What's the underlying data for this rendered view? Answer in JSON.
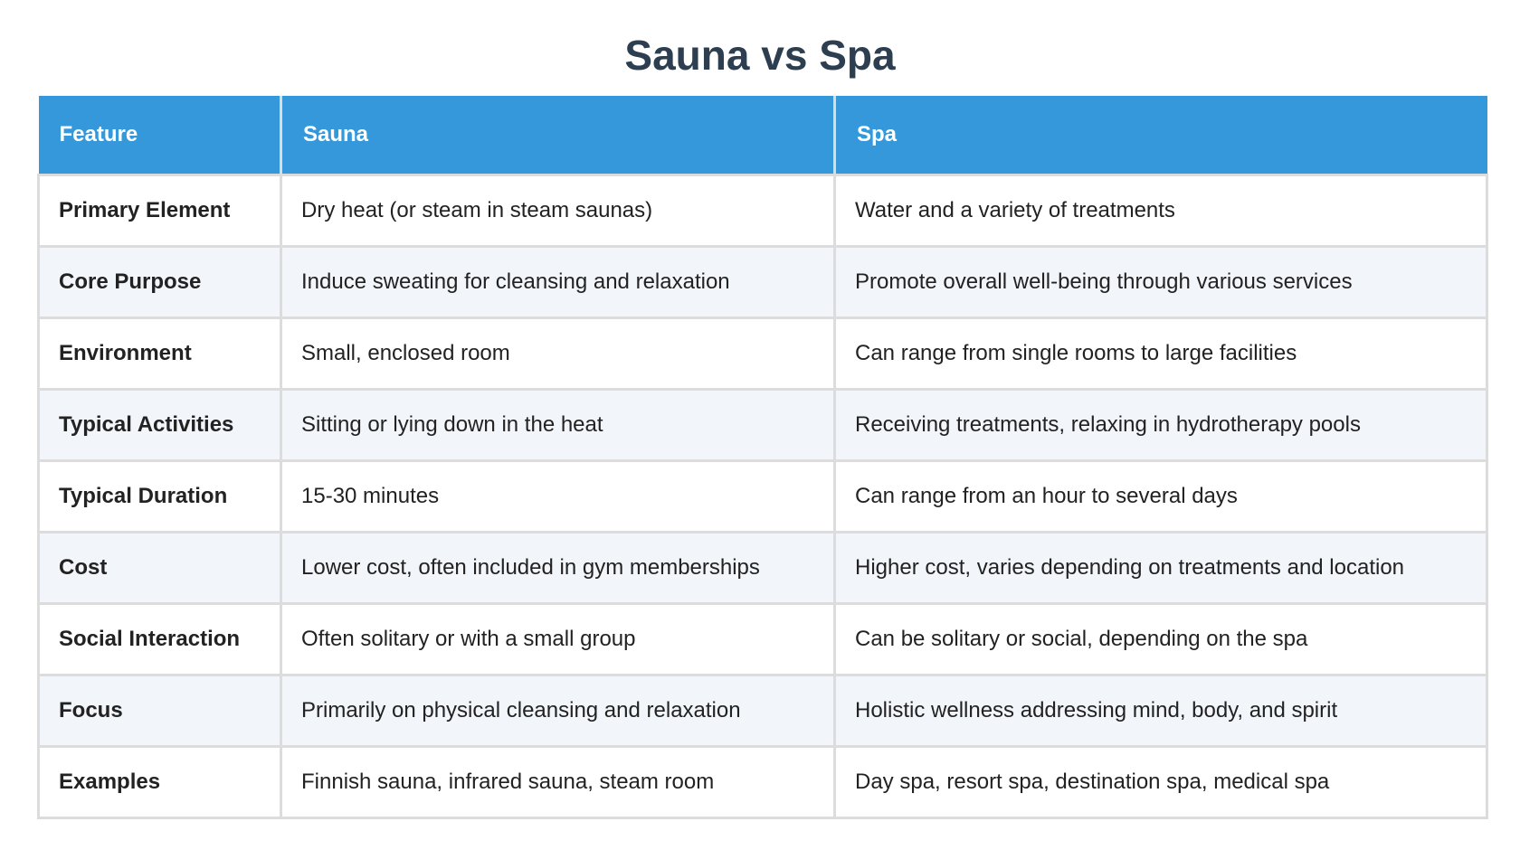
{
  "title": "Sauna vs Spa",
  "table": {
    "headers": [
      "Feature",
      "Sauna",
      "Spa"
    ],
    "rows": [
      [
        "Primary Element",
        "Dry heat (or steam in steam saunas)",
        "Water and a variety of treatments"
      ],
      [
        "Core Purpose",
        "Induce sweating for cleansing and relaxation",
        "Promote overall well-being through various services"
      ],
      [
        "Environment",
        "Small, enclosed room",
        "Can range from single rooms to large facilities"
      ],
      [
        "Typical Activities",
        "Sitting or lying down in the heat",
        "Receiving treatments, relaxing in hydrotherapy pools"
      ],
      [
        "Typical Duration",
        "15-30 minutes",
        "Can range from an hour to several days"
      ],
      [
        "Cost",
        "Lower cost, often included in gym memberships",
        "Higher cost, varies depending on treatments and location"
      ],
      [
        "Social Interaction",
        "Often solitary or with a small group",
        "Can be solitary or social, depending on the spa"
      ],
      [
        "Focus",
        "Primarily on physical cleansing and relaxation",
        "Holistic wellness addressing mind, body, and spirit"
      ],
      [
        "Examples",
        "Finnish sauna, infrared sauna, steam room",
        "Day spa, resort spa, destination spa, medical spa"
      ]
    ]
  },
  "colors": {
    "title": "#2c3e50",
    "header_background": "#3498db",
    "header_text": "#ffffff",
    "row_alt_background": "#f2f5f9",
    "border": "#dcdcdc"
  }
}
